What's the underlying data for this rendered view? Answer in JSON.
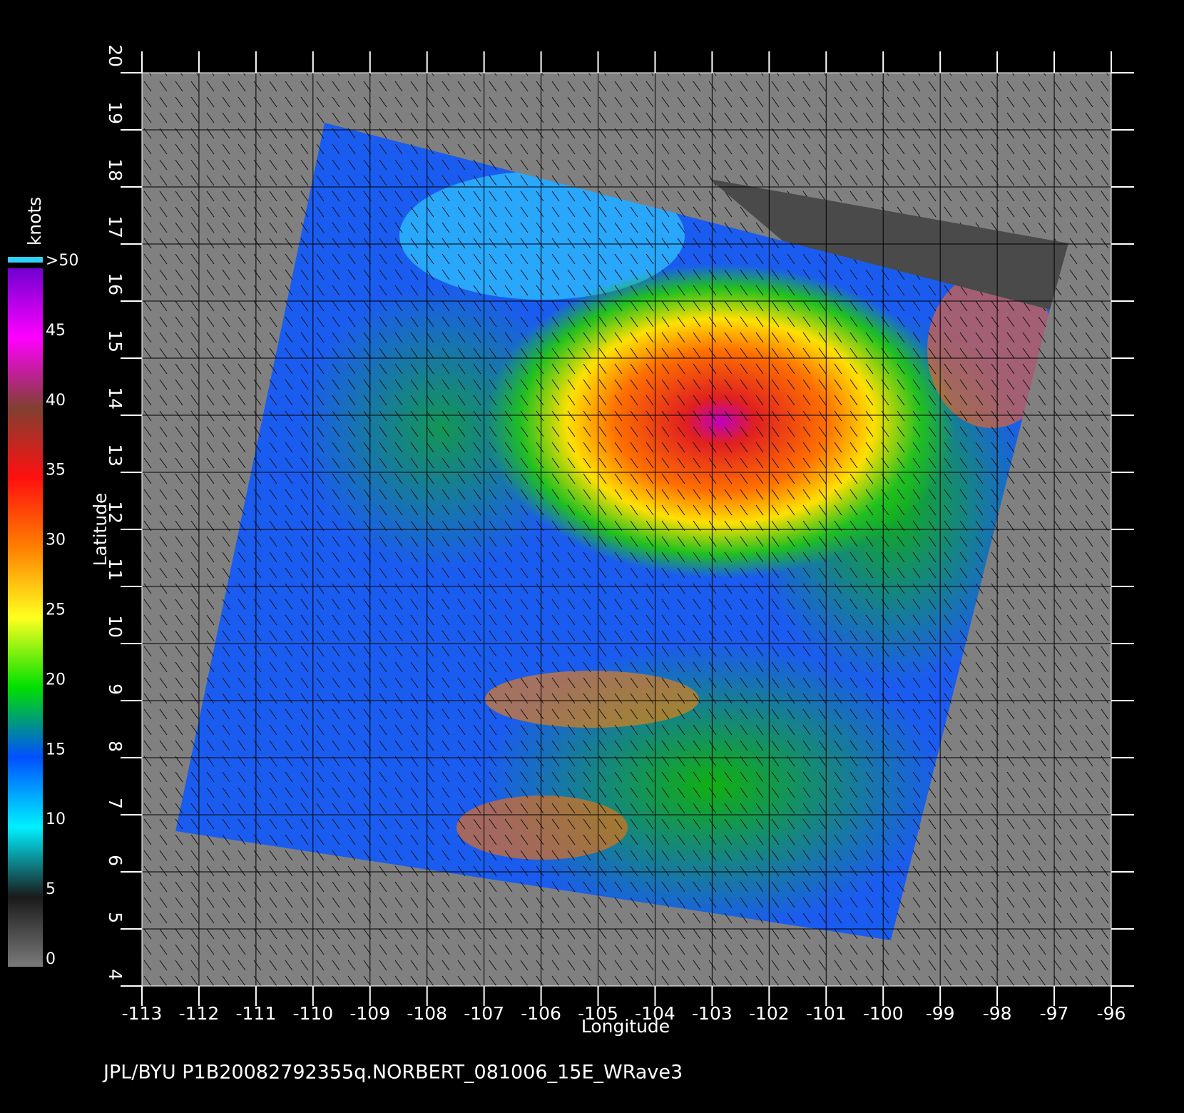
{
  "chart_data": {
    "type": "map",
    "title": "JPL/BYU  P1B20082792355q.NORBERT_081006_15E_WRave3",
    "xlabel": "Longitude",
    "ylabel": "Latitude",
    "xlim": [
      -113,
      -96
    ],
    "ylim": [
      4,
      20
    ],
    "xticks": [
      -113,
      -112,
      -111,
      -110,
      -109,
      -108,
      -107,
      -106,
      -105,
      -104,
      -103,
      -102,
      -101,
      -100,
      -99,
      -98,
      -97,
      -96
    ],
    "yticks": [
      4,
      5,
      6,
      7,
      8,
      9,
      10,
      11,
      12,
      13,
      14,
      15,
      16,
      17,
      18,
      19,
      20
    ],
    "grid": true,
    "colorbar": {
      "label": "knots",
      "lim": [
        0,
        50
      ],
      "ticks": [
        0,
        5,
        10,
        15,
        20,
        25,
        30,
        35,
        40,
        45,
        {
          "value": 50,
          "label": ">50"
        }
      ],
      "colors": [
        "#7a7a7a",
        "#1a1a1a",
        "#00f0ff",
        "#0050ff",
        "#00e000",
        "#ffff20",
        "#ff8000",
        "#ff1010",
        "#804030",
        "#ff00ff",
        "#7000d0"
      ]
    }
  }
}
